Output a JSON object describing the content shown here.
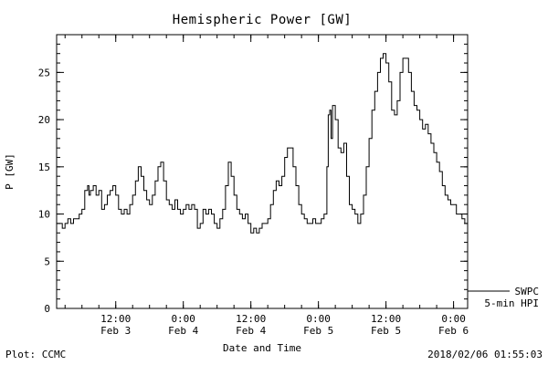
{
  "title": "Hemispheric Power [GW]",
  "footer": {
    "left": "Plot: CCMC",
    "right": "2018/02/06 01:55:03"
  },
  "legend": {
    "line1": "SWPC",
    "line2": "5-min HPI"
  },
  "chart_data": {
    "type": "line",
    "title": "Hemispheric Power [GW]",
    "xlabel": "Date and Time",
    "ylabel": "P [GW]",
    "x_axis_note": "hours measured from 2018 Feb 3 00:00",
    "x_range_hours": [
      1.5,
      74.5
    ],
    "ylim": [
      0,
      29
    ],
    "y_ticks": [
      0,
      5,
      10,
      15,
      20,
      25
    ],
    "y_minor_step": 1,
    "x_minor_step_hours": 3,
    "grid": false,
    "legend_position": "outside-right-bottom",
    "x_ticks": [
      {
        "hour": 12,
        "time": "12:00",
        "date": "Feb 3"
      },
      {
        "hour": 24,
        "time": "0:00",
        "date": "Feb 4"
      },
      {
        "hour": 36,
        "time": "12:00",
        "date": "Feb 4"
      },
      {
        "hour": 48,
        "time": "0:00",
        "date": "Feb 5"
      },
      {
        "hour": 60,
        "time": "12:00",
        "date": "Feb 5"
      },
      {
        "hour": 72,
        "time": "0:00",
        "date": "Feb 6"
      }
    ],
    "series": [
      {
        "name": "SWPC 5-min HPI",
        "color": "#000000",
        "step": true,
        "points": [
          [
            1.5,
            9
          ],
          [
            2,
            9
          ],
          [
            2.5,
            8.5
          ],
          [
            3,
            9
          ],
          [
            3.5,
            9.5
          ],
          [
            4,
            9
          ],
          [
            4.5,
            9.5
          ],
          [
            5,
            9.5
          ],
          [
            5.5,
            10
          ],
          [
            6,
            10.5
          ],
          [
            6.5,
            12.5
          ],
          [
            7,
            13
          ],
          [
            7.25,
            12
          ],
          [
            7.5,
            12.5
          ],
          [
            8,
            13
          ],
          [
            8.5,
            12
          ],
          [
            9,
            12.5
          ],
          [
            9.5,
            10.5
          ],
          [
            10,
            11
          ],
          [
            10.5,
            12
          ],
          [
            11,
            12.5
          ],
          [
            11.5,
            13
          ],
          [
            12,
            12
          ],
          [
            12.5,
            10.5
          ],
          [
            13,
            10
          ],
          [
            13.5,
            10.5
          ],
          [
            14,
            10
          ],
          [
            14.5,
            11
          ],
          [
            15,
            12
          ],
          [
            15.5,
            13.5
          ],
          [
            16,
            15
          ],
          [
            16.5,
            14
          ],
          [
            17,
            12.5
          ],
          [
            17.5,
            11.5
          ],
          [
            18,
            11
          ],
          [
            18.5,
            12
          ],
          [
            19,
            13.5
          ],
          [
            19.5,
            15
          ],
          [
            20,
            15.5
          ],
          [
            20.5,
            13.5
          ],
          [
            21,
            11.5
          ],
          [
            21.5,
            11
          ],
          [
            22,
            10.5
          ],
          [
            22.5,
            11.5
          ],
          [
            23,
            10.5
          ],
          [
            23.5,
            10
          ],
          [
            24,
            10.5
          ],
          [
            24.5,
            11
          ],
          [
            25,
            10.5
          ],
          [
            25.5,
            11
          ],
          [
            26,
            10.5
          ],
          [
            26.5,
            8.5
          ],
          [
            27,
            9
          ],
          [
            27.5,
            10.5
          ],
          [
            28,
            10
          ],
          [
            28.5,
            10.5
          ],
          [
            29,
            10
          ],
          [
            29.5,
            9
          ],
          [
            30,
            8.5
          ],
          [
            30.5,
            9.5
          ],
          [
            31,
            10.5
          ],
          [
            31.5,
            13
          ],
          [
            32,
            15.5
          ],
          [
            32.5,
            14
          ],
          [
            33,
            12
          ],
          [
            33.5,
            10.5
          ],
          [
            34,
            10
          ],
          [
            34.5,
            9.5
          ],
          [
            35,
            10
          ],
          [
            35.5,
            9
          ],
          [
            36,
            8
          ],
          [
            36.5,
            8.5
          ],
          [
            37,
            8
          ],
          [
            37.5,
            8.5
          ],
          [
            38,
            9
          ],
          [
            38.5,
            9
          ],
          [
            39,
            9.5
          ],
          [
            39.5,
            11
          ],
          [
            40,
            12.5
          ],
          [
            40.5,
            13.5
          ],
          [
            41,
            13
          ],
          [
            41.5,
            14
          ],
          [
            42,
            16
          ],
          [
            42.5,
            17
          ],
          [
            43,
            17
          ],
          [
            43.5,
            15
          ],
          [
            44,
            13
          ],
          [
            44.5,
            11
          ],
          [
            45,
            10
          ],
          [
            45.5,
            9.5
          ],
          [
            46,
            9
          ],
          [
            46.5,
            9
          ],
          [
            47,
            9.5
          ],
          [
            47.5,
            9
          ],
          [
            48,
            9
          ],
          [
            48.5,
            9.5
          ],
          [
            49,
            10
          ],
          [
            49.5,
            15
          ],
          [
            49.75,
            20.5
          ],
          [
            50,
            21
          ],
          [
            50.25,
            18
          ],
          [
            50.5,
            21.5
          ],
          [
            51,
            20
          ],
          [
            51.5,
            17
          ],
          [
            52,
            16.5
          ],
          [
            52.5,
            17.5
          ],
          [
            53,
            14
          ],
          [
            53.5,
            11
          ],
          [
            54,
            10.5
          ],
          [
            54.5,
            10
          ],
          [
            55,
            9
          ],
          [
            55.5,
            10
          ],
          [
            56,
            12
          ],
          [
            56.5,
            15
          ],
          [
            57,
            18
          ],
          [
            57.5,
            21
          ],
          [
            58,
            23
          ],
          [
            58.5,
            25
          ],
          [
            59,
            26.5
          ],
          [
            59.5,
            27
          ],
          [
            60,
            26
          ],
          [
            60.5,
            24
          ],
          [
            61,
            21
          ],
          [
            61.5,
            20.5
          ],
          [
            62,
            22
          ],
          [
            62.5,
            25
          ],
          [
            63,
            26.5
          ],
          [
            63.5,
            26.5
          ],
          [
            64,
            25
          ],
          [
            64.5,
            23
          ],
          [
            65,
            21.5
          ],
          [
            65.5,
            21
          ],
          [
            66,
            20
          ],
          [
            66.5,
            19
          ],
          [
            67,
            19.5
          ],
          [
            67.5,
            18.5
          ],
          [
            68,
            17.5
          ],
          [
            68.5,
            16.5
          ],
          [
            69,
            15.5
          ],
          [
            69.5,
            14.5
          ],
          [
            70,
            13
          ],
          [
            70.5,
            12
          ],
          [
            71,
            11.5
          ],
          [
            71.5,
            11
          ],
          [
            72,
            11
          ],
          [
            72.5,
            10
          ],
          [
            73,
            10
          ],
          [
            73.5,
            9.5
          ],
          [
            74,
            9
          ],
          [
            74.5,
            9
          ]
        ]
      }
    ]
  }
}
